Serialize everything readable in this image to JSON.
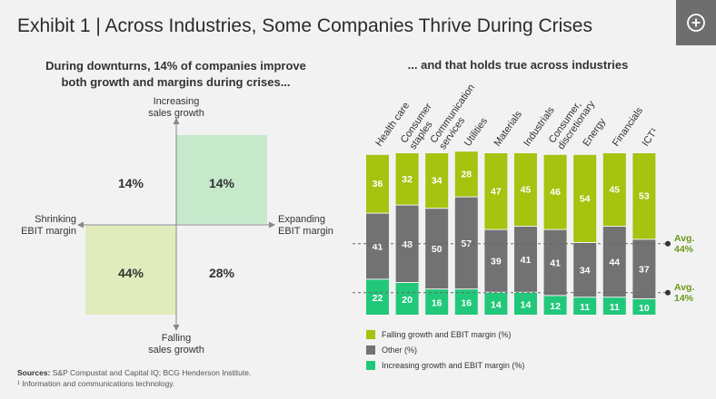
{
  "title": "Exhibit 1 | Across Industries, Some Companies Thrive During Crises",
  "left_panel": {
    "subtitle_line1": "During downturns, 14% of companies improve",
    "subtitle_line2": "both growth and margins during crises...",
    "axis_top_line1": "Increasing",
    "axis_top_line2": "sales growth",
    "axis_bottom_line1": "Falling",
    "axis_bottom_line2": "sales growth",
    "axis_left_line1": "Shrinking",
    "axis_left_line2": "EBIT margin",
    "axis_right_line1": "Expanding",
    "axis_right_line2": "EBIT margin",
    "q_top_left": "14%",
    "q_top_right": "14%",
    "q_bottom_left": "44%",
    "q_bottom_right": "28%"
  },
  "right_panel": {
    "subtitle": "... and that holds true across industries"
  },
  "colors": {
    "falling": "#a5c30f",
    "other": "#727272",
    "increasing": "#21c87a",
    "quad_green": "#c6e9cc",
    "quad_yellowgreen": "#e1ecbc"
  },
  "chart_data": {
    "type": "bar",
    "stacked": true,
    "categories": [
      "Health care",
      "Consumer staples",
      "Communication services",
      "Utilities",
      "Materials",
      "Industrials",
      "Consumer, discretionary",
      "Energy",
      "Financials",
      "ICT¹"
    ],
    "category_lines": [
      [
        "Health care"
      ],
      [
        "Consumer",
        "staples"
      ],
      [
        "Communication",
        "services"
      ],
      [
        "Utilities"
      ],
      [
        "Materials"
      ],
      [
        "Industrials"
      ],
      [
        "Consumer,",
        "discretionary"
      ],
      [
        "Energy"
      ],
      [
        "Financials"
      ],
      [
        "ICT¹"
      ]
    ],
    "series": [
      {
        "name": "Increasing growth and EBIT margin (%)",
        "values": [
          22,
          20,
          16,
          16,
          14,
          14,
          12,
          11,
          11,
          10
        ]
      },
      {
        "name": "Other (%)",
        "values": [
          41,
          48,
          50,
          57,
          39,
          41,
          41,
          34,
          44,
          37
        ]
      },
      {
        "name": "Falling growth and EBIT margin (%)",
        "values": [
          36,
          32,
          34,
          28,
          47,
          45,
          46,
          54,
          45,
          53
        ]
      }
    ],
    "ylim": [
      0,
      100
    ],
    "reference_lines": [
      {
        "label_line1": "Avg.",
        "label_line2": "44%",
        "value": 44
      },
      {
        "label_line1": "Avg.",
        "label_line2": "14%",
        "value": 14
      }
    ],
    "legend": [
      {
        "label": "Falling growth and EBIT margin (%)"
      },
      {
        "label": "Other (%)"
      },
      {
        "label": "Increasing growth and EBIT margin (%)"
      }
    ]
  },
  "sources": {
    "label": "Sources:",
    "text": "S&P Compustat and Capital IQ; BCG Henderson Institute.",
    "footnote": "¹ Information and communications technology."
  }
}
